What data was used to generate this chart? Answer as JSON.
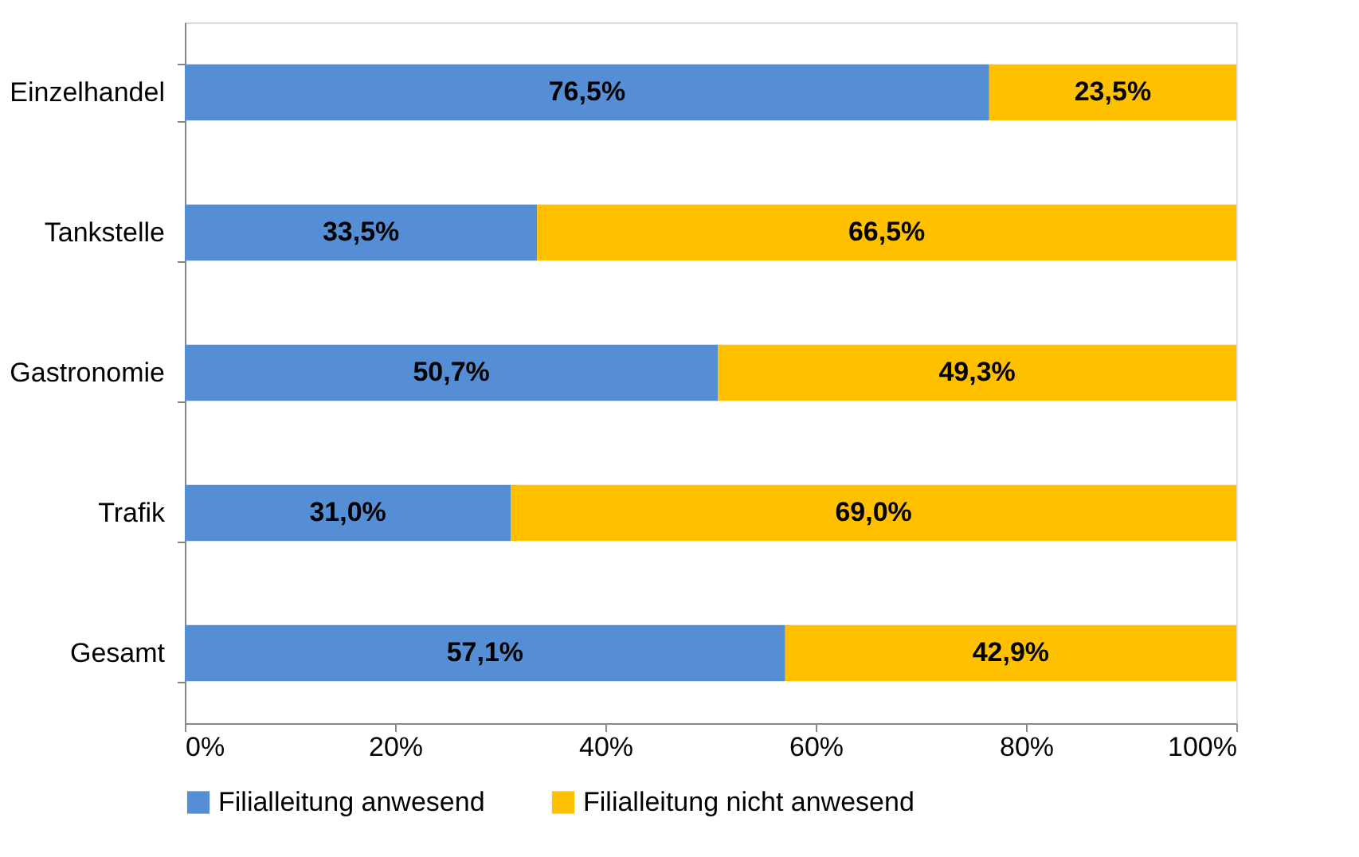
{
  "chart_data": {
    "type": "bar",
    "orientation": "horizontal",
    "stacked": true,
    "categories": [
      "Einzelhandel",
      "Tankstelle",
      "Gastronomie",
      "Trafik",
      "Gesamt"
    ],
    "series": [
      {
        "name": "Filialleitung anwesend",
        "color": "#558ed5",
        "values": [
          76.5,
          33.5,
          50.7,
          31.0,
          57.1
        ],
        "value_labels": [
          "76,5%",
          "33,5%",
          "50,7%",
          "31,0%",
          "57,1%"
        ]
      },
      {
        "name": "Filialleitung nicht anwesend",
        "color": "#ffc000",
        "values": [
          23.5,
          66.5,
          49.3,
          69.0,
          42.9
        ],
        "value_labels": [
          "23,5%",
          "66,5%",
          "49,3%",
          "69,0%",
          "42,9%"
        ]
      }
    ],
    "xlim": [
      0,
      100
    ],
    "xticks": [
      {
        "value": 0,
        "label": "0%"
      },
      {
        "value": 20,
        "label": "20%"
      },
      {
        "value": 40,
        "label": "40%"
      },
      {
        "value": 60,
        "label": "60%"
      },
      {
        "value": 80,
        "label": "80%"
      },
      {
        "value": 100,
        "label": "100%"
      }
    ],
    "grid": false,
    "legend": "bottom"
  }
}
